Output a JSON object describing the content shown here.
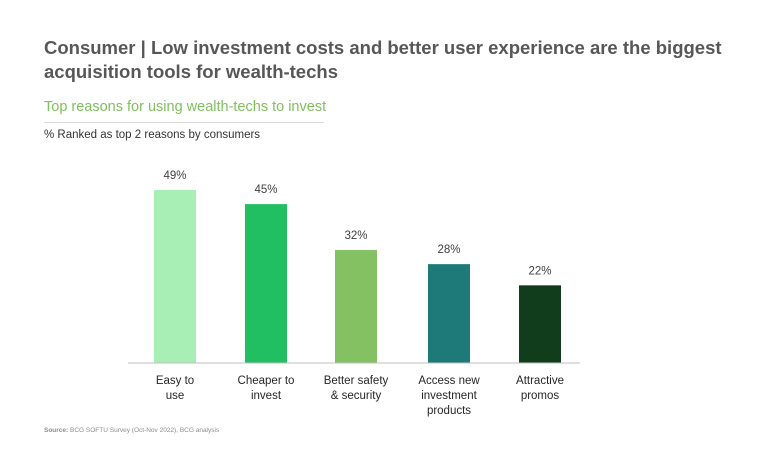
{
  "header": {
    "title": "Consumer | Low investment costs and better user experience are the biggest acquisition tools for wealth-techs",
    "subtitle": "Top reasons for using wealth-techs to invest",
    "note": "% Ranked as top 2 reasons by consumers"
  },
  "footer": {
    "source_label": "Source:",
    "source_text": "BCG SOFTU Survey (Oct-Nov 2022), BCG analysis"
  },
  "chart_data": {
    "type": "bar",
    "title": "Top reasons for using wealth-techs to invest",
    "ylabel": "% Ranked as top 2 reasons by consumers",
    "xlabel": "",
    "categories": [
      [
        "Easy to",
        "use"
      ],
      [
        "Cheaper to",
        "invest"
      ],
      [
        "Better safety",
        "& security"
      ],
      [
        "Access new",
        "investment",
        "products"
      ],
      [
        "Attractive",
        "promos"
      ]
    ],
    "values": [
      49,
      45,
      32,
      28,
      22
    ],
    "data_labels": [
      "49%",
      "45%",
      "32%",
      "28%",
      "22%"
    ],
    "colors": [
      "#a8efb6",
      "#21bf61",
      "#84c163",
      "#1d7a78",
      "#123d1c"
    ],
    "ylim": [
      0,
      49
    ],
    "grid": false,
    "legend": "none"
  }
}
